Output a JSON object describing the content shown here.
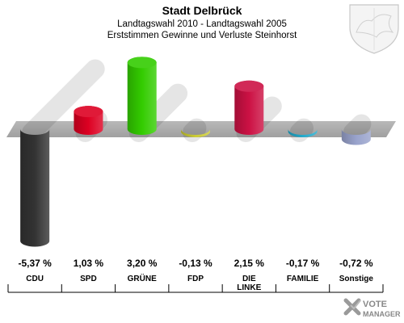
{
  "chart_data": {
    "type": "bar",
    "title": "Stadt Delbrück",
    "subtitle_1": "Landtagswahl 2010 - Landtagswahl 2005",
    "subtitle_2": "Erststimmen Gewinne und Verluste Steinhorst",
    "categories": [
      "CDU",
      "SPD",
      "GRÜNE",
      "FDP",
      "DIE LINKE",
      "FAMILIE",
      "Sonstige"
    ],
    "category_lines": [
      [
        "CDU"
      ],
      [
        "SPD"
      ],
      [
        "GRÜNE"
      ],
      [
        "FDP"
      ],
      [
        "DIE",
        "LINKE"
      ],
      [
        "FAMILIE"
      ],
      [
        "Sonstige"
      ]
    ],
    "values": [
      -5.37,
      1.03,
      3.2,
      -0.13,
      2.15,
      -0.17,
      -0.72
    ],
    "value_labels": [
      "-5,37 %",
      "1,03 %",
      "3,20 %",
      "-0,13 %",
      "2,15 %",
      "-0,17 %",
      "-0,72 %"
    ],
    "colors": [
      "#333333",
      "#dd0022",
      "#33cc00",
      "#cccc33",
      "#cc1144",
      "#22aacc",
      "#99a3cc"
    ],
    "ylim": [
      -5.5,
      3.5
    ]
  },
  "brand": {
    "line1": "VOTE",
    "line2": "MANAGER"
  }
}
